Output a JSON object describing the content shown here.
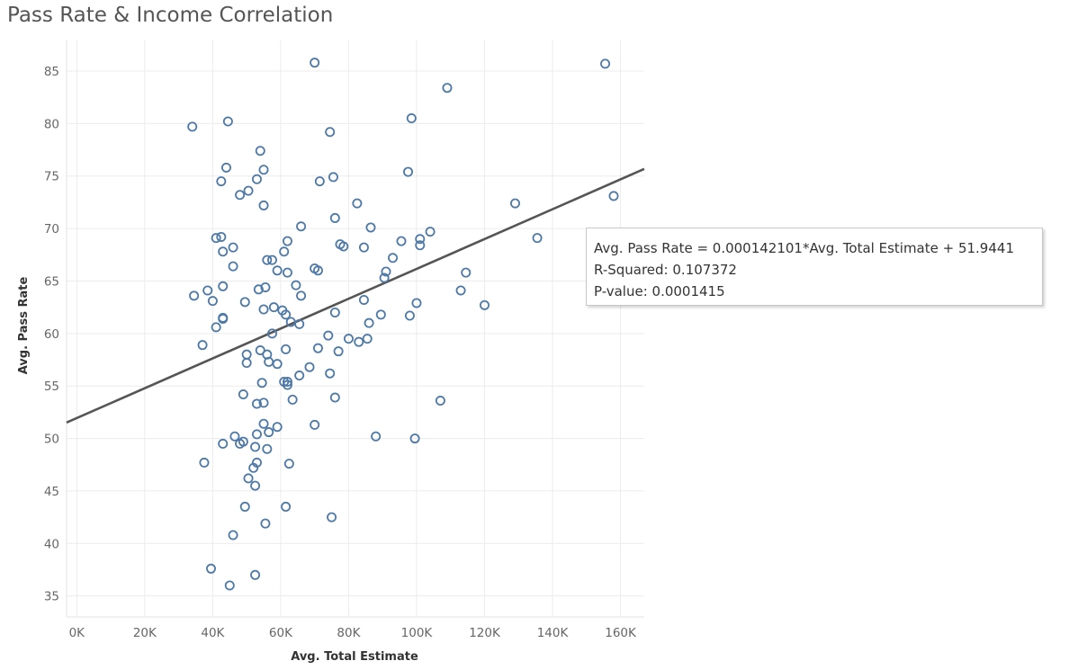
{
  "title": "Pass Rate & Income Correlation",
  "tooltip": {
    "line1": "Avg. Pass Rate = 0.000142101*Avg. Total Estimate + 51.9441",
    "line2": "R-Squared: 0.107372",
    "line3": "P-value: 0.0001415"
  },
  "chart_data": {
    "type": "scatter",
    "xlabel": "Avg. Total Estimate",
    "ylabel": "Avg. Pass Rate",
    "xlim": [
      -3000,
      167000
    ],
    "ylim": [
      33,
      88
    ],
    "x_ticks": [
      0,
      20000,
      40000,
      60000,
      80000,
      100000,
      120000,
      140000,
      160000
    ],
    "x_tick_labels": [
      "0K",
      "20K",
      "40K",
      "60K",
      "80K",
      "100K",
      "120K",
      "140K",
      "160K"
    ],
    "y_ticks": [
      35,
      40,
      45,
      50,
      55,
      60,
      65,
      70,
      75,
      80,
      85
    ],
    "y_tick_labels": [
      "35",
      "40",
      "45",
      "50",
      "55",
      "60",
      "65",
      "70",
      "75",
      "80",
      "85"
    ],
    "grid": true,
    "marker_color": "#4e79a7",
    "trend_line": {
      "slope": 0.000142101,
      "intercept": 51.9441,
      "color": "#555555"
    },
    "points": [
      [
        70000,
        85.8
      ],
      [
        155500,
        85.7
      ],
      [
        109000,
        83.4
      ],
      [
        98500,
        80.5
      ],
      [
        44500,
        80.2
      ],
      [
        34000,
        79.7
      ],
      [
        74500,
        79.2
      ],
      [
        54000,
        77.4
      ],
      [
        44000,
        75.8
      ],
      [
        55000,
        75.6
      ],
      [
        97500,
        75.4
      ],
      [
        75500,
        74.9
      ],
      [
        42500,
        74.5
      ],
      [
        71500,
        74.5
      ],
      [
        53000,
        74.7
      ],
      [
        50500,
        73.6
      ],
      [
        48000,
        73.2
      ],
      [
        158000,
        73.1
      ],
      [
        129000,
        72.4
      ],
      [
        82500,
        72.4
      ],
      [
        55000,
        72.2
      ],
      [
        76000,
        71.0
      ],
      [
        66000,
        70.2
      ],
      [
        86500,
        70.1
      ],
      [
        104000,
        69.7
      ],
      [
        135500,
        69.1
      ],
      [
        41000,
        69.1
      ],
      [
        42500,
        69.2
      ],
      [
        101000,
        69.0
      ],
      [
        95500,
        68.8
      ],
      [
        62000,
        68.8
      ],
      [
        77500,
        68.5
      ],
      [
        46000,
        68.2
      ],
      [
        78500,
        68.3
      ],
      [
        84500,
        68.2
      ],
      [
        101000,
        68.4
      ],
      [
        61000,
        67.8
      ],
      [
        43000,
        67.8
      ],
      [
        56000,
        67.0
      ],
      [
        57500,
        67.0
      ],
      [
        93000,
        67.2
      ],
      [
        46000,
        66.4
      ],
      [
        70000,
        66.2
      ],
      [
        71000,
        66.0
      ],
      [
        91000,
        65.9
      ],
      [
        114500,
        65.8
      ],
      [
        59000,
        66.0
      ],
      [
        62000,
        65.8
      ],
      [
        90500,
        65.3
      ],
      [
        55500,
        64.4
      ],
      [
        64500,
        64.6
      ],
      [
        43000,
        64.5
      ],
      [
        53500,
        64.2
      ],
      [
        113000,
        64.1
      ],
      [
        34500,
        63.6
      ],
      [
        38500,
        64.1
      ],
      [
        66000,
        63.6
      ],
      [
        84500,
        63.2
      ],
      [
        40000,
        63.1
      ],
      [
        49500,
        63.0
      ],
      [
        100000,
        62.9
      ],
      [
        120000,
        62.7
      ],
      [
        58000,
        62.5
      ],
      [
        55000,
        62.3
      ],
      [
        60500,
        62.2
      ],
      [
        76000,
        62.0
      ],
      [
        61500,
        61.8
      ],
      [
        89500,
        61.8
      ],
      [
        98000,
        61.7
      ],
      [
        43000,
        61.5
      ],
      [
        43000,
        61.4
      ],
      [
        63000,
        61.1
      ],
      [
        65500,
        60.9
      ],
      [
        86000,
        61.0
      ],
      [
        41000,
        60.6
      ],
      [
        57500,
        60.0
      ],
      [
        74000,
        59.8
      ],
      [
        80000,
        59.5
      ],
      [
        85500,
        59.5
      ],
      [
        83000,
        59.2
      ],
      [
        37000,
        58.9
      ],
      [
        61500,
        58.5
      ],
      [
        54000,
        58.4
      ],
      [
        71000,
        58.6
      ],
      [
        77000,
        58.3
      ],
      [
        50000,
        58.0
      ],
      [
        56000,
        58.0
      ],
      [
        56500,
        57.3
      ],
      [
        50000,
        57.2
      ],
      [
        59000,
        57.1
      ],
      [
        68500,
        56.8
      ],
      [
        74500,
        56.2
      ],
      [
        65500,
        56.0
      ],
      [
        61000,
        55.4
      ],
      [
        62000,
        55.4
      ],
      [
        54500,
        55.3
      ],
      [
        62000,
        55.1
      ],
      [
        49000,
        54.2
      ],
      [
        76000,
        53.9
      ],
      [
        107000,
        53.6
      ],
      [
        63500,
        53.7
      ],
      [
        55000,
        53.4
      ],
      [
        53000,
        53.3
      ],
      [
        55000,
        51.4
      ],
      [
        59000,
        51.1
      ],
      [
        70000,
        51.3
      ],
      [
        56500,
        50.6
      ],
      [
        53000,
        50.4
      ],
      [
        46500,
        50.2
      ],
      [
        88000,
        50.2
      ],
      [
        99500,
        50.0
      ],
      [
        49000,
        49.7
      ],
      [
        48000,
        49.5
      ],
      [
        43000,
        49.5
      ],
      [
        52500,
        49.2
      ],
      [
        56000,
        49.0
      ],
      [
        53000,
        47.7
      ],
      [
        62500,
        47.6
      ],
      [
        52000,
        47.2
      ],
      [
        37500,
        47.7
      ],
      [
        50500,
        46.2
      ],
      [
        52500,
        45.5
      ],
      [
        49500,
        43.5
      ],
      [
        61500,
        43.5
      ],
      [
        75000,
        42.5
      ],
      [
        55500,
        41.9
      ],
      [
        46000,
        40.8
      ],
      [
        39500,
        37.6
      ],
      [
        52500,
        37.0
      ],
      [
        45000,
        36.0
      ]
    ]
  }
}
